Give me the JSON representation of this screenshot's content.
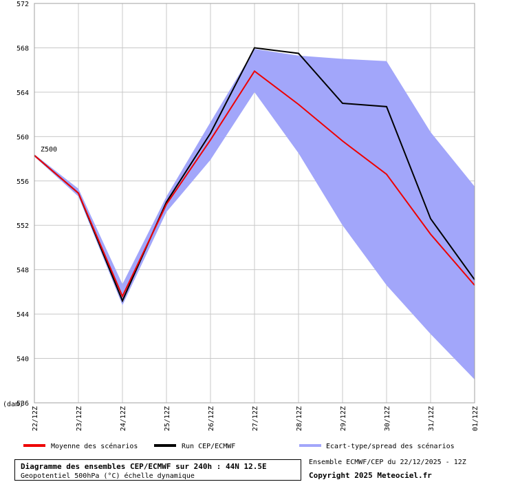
{
  "chart_data": {
    "type": "line",
    "title": "Diagramme des ensembles CEP/ECMWF sur 240h : 44N 12.5E",
    "subtitle": "Geopotentiel 500hPa (°C) échelle dynamique",
    "ylabel": "(dam)",
    "series_label": "Z500",
    "ylim": [
      536,
      572
    ],
    "yticks": [
      572,
      568,
      564,
      560,
      556,
      552,
      548,
      544,
      540,
      "536"
    ],
    "x": [
      0,
      1,
      2,
      3,
      4,
      5,
      6,
      7,
      8,
      9,
      10
    ],
    "xticks": [
      "22/12Z",
      "23/12Z",
      "24/12Z",
      "25/12Z",
      "26/12Z",
      "27/12Z",
      "28/12Z",
      "29/12Z",
      "30/12Z",
      "31/12Z",
      "01/12Z"
    ],
    "series": [
      {
        "name": "Moyenne des scénarios",
        "color": "#ee0000",
        "values": [
          558.3,
          554.9,
          545.6,
          553.9,
          559.7,
          565.9,
          562.9,
          559.6,
          556.6,
          551.2,
          546.6
        ]
      },
      {
        "name": "Run CEP/ECMWF",
        "color": "#000000",
        "values": [
          558.3,
          554.9,
          545.2,
          554.1,
          560.3,
          568.0,
          567.5,
          563.0,
          562.7,
          552.6,
          547.1
        ]
      }
    ],
    "spread": {
      "name": "Ecart-type/spread des scénarios",
      "color": "#a2a6fa",
      "upper": [
        558.4,
        555.3,
        546.7,
        554.6,
        561.3,
        567.9,
        567.3,
        567.0,
        566.8,
        560.4,
        555.5
      ],
      "lower": [
        558.2,
        554.6,
        544.8,
        553.2,
        557.9,
        564.0,
        558.5,
        552.0,
        546.6,
        542.2,
        538.1
      ]
    },
    "grid": true,
    "legend_position": "bottom"
  },
  "footer": {
    "ensemble": "Ensemble ECMWF/CEP du 22/12/2025 - 12Z",
    "copyright": "Copyright 2025 Meteociel.fr"
  }
}
